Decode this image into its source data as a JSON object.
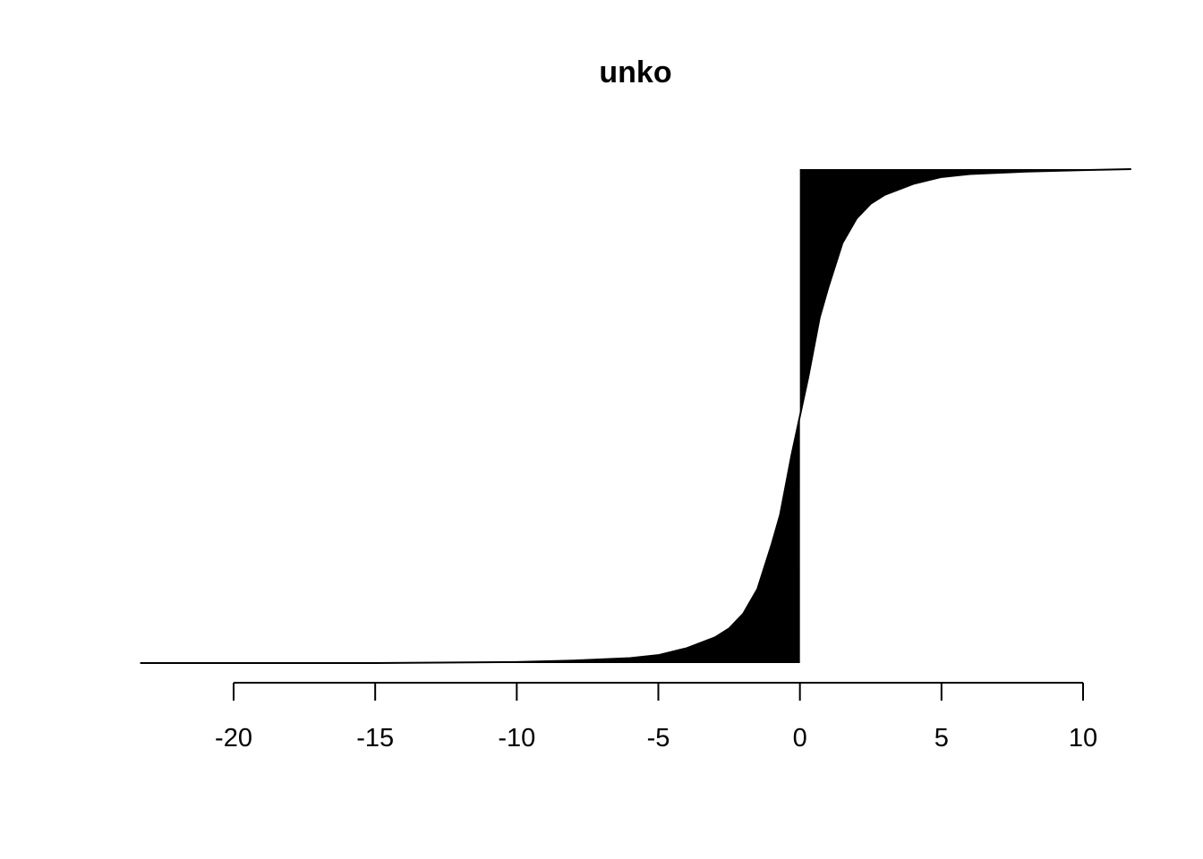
{
  "chart_data": {
    "type": "area",
    "title": "unko",
    "xlabel": "",
    "ylabel": "",
    "xlim": [
      -23.3,
      11.7
    ],
    "ylim": [
      0,
      1
    ],
    "x_ticks": [
      -20,
      -15,
      -10,
      -5,
      0,
      5,
      10
    ],
    "x_tick_labels": [
      "-20",
      "-15",
      "-10",
      "-5",
      "0",
      "5",
      "10"
    ],
    "y_axis_shown": false,
    "grid": false,
    "fill_color": "#000000",
    "curve": {
      "x": [
        -23.3,
        -20,
        -15,
        -10,
        -8,
        -6,
        -5,
        -4,
        -3,
        -2.5,
        -2,
        -1.5,
        -1,
        -0.7,
        -0.5,
        -0.3,
        0,
        0.3,
        0.5,
        0.7,
        1,
        1.5,
        2,
        2.5,
        3,
        4,
        5,
        6,
        8,
        10,
        11.7
      ],
      "y": [
        0,
        0,
        0,
        0.002,
        0.005,
        0.01,
        0.016,
        0.03,
        0.052,
        0.07,
        0.1,
        0.15,
        0.24,
        0.3,
        0.36,
        0.42,
        0.5,
        0.58,
        0.64,
        0.7,
        0.76,
        0.85,
        0.9,
        0.93,
        0.948,
        0.97,
        0.984,
        0.99,
        0.995,
        0.998,
        1
      ]
    },
    "fill_between": {
      "from": "step_at_0",
      "step_x": 0
    }
  }
}
